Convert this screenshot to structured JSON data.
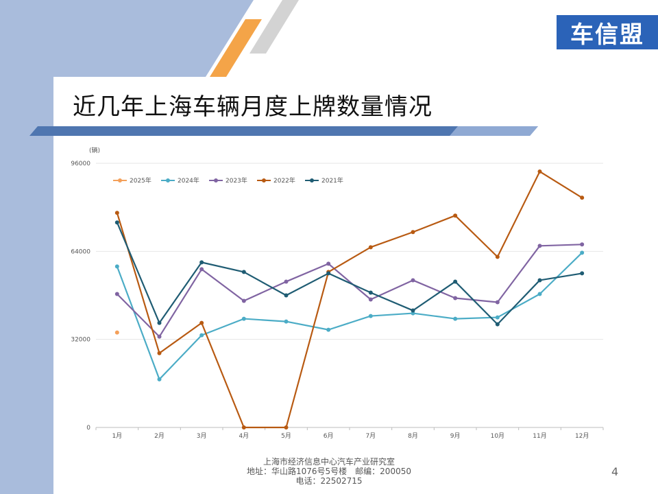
{
  "slide": {
    "logo_text": "车信盟",
    "title": "近几年上海车辆月度上牌数量情况",
    "footer_lines": [
      "上海市经济信息中心汽车产业研究室",
      "地址：华山路1076号5号楼　邮编：200050",
      "电话：22502715"
    ],
    "page_number": "4",
    "colors": {
      "accent_blue": "#2b63b8",
      "accent_orange": "#f4a448",
      "side_band": "#a9bcdc"
    }
  },
  "chart_data": {
    "type": "line",
    "unit_label": "(辆)",
    "categories": [
      "1月",
      "2月",
      "3月",
      "4月",
      "5月",
      "6月",
      "7月",
      "8月",
      "9月",
      "10月",
      "11月",
      "12月"
    ],
    "y_ticks": [
      "0",
      "32000",
      "64000",
      "96000"
    ],
    "ylim": [
      0,
      96000
    ],
    "grid": true,
    "legend_position": "top-left",
    "series": [
      {
        "name": "2025年",
        "color": "#f4a05a",
        "values": [
          34500,
          null,
          null,
          null,
          null,
          null,
          null,
          null,
          null,
          null,
          null,
          null
        ]
      },
      {
        "name": "2024年",
        "color": "#4bacc6",
        "values": [
          58500,
          17500,
          33500,
          39500,
          38500,
          35500,
          40500,
          41500,
          39500,
          40000,
          48500,
          63500
        ]
      },
      {
        "name": "2023年",
        "color": "#8064a2",
        "values": [
          48500,
          33000,
          57500,
          46000,
          53000,
          59500,
          46500,
          53500,
          47000,
          45500,
          66000,
          66500
        ]
      },
      {
        "name": "2022年",
        "color": "#b85a12",
        "values": [
          78000,
          27000,
          38000,
          0,
          0,
          56500,
          65500,
          71000,
          77000,
          62000,
          93000,
          83500
        ]
      },
      {
        "name": "2021年",
        "color": "#1f5c73",
        "values": [
          74500,
          38000,
          60000,
          56500,
          48000,
          56000,
          49000,
          42500,
          53000,
          37500,
          53500,
          56000
        ]
      }
    ]
  }
}
